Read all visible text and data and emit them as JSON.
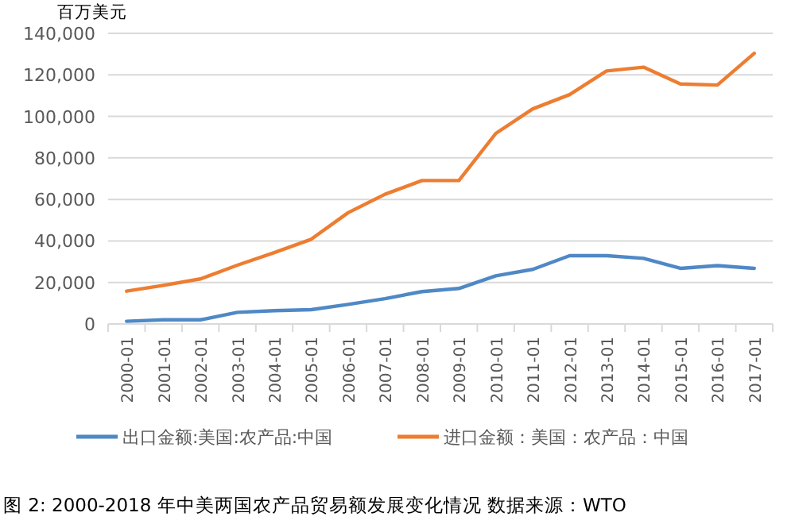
{
  "chart_data": {
    "type": "line",
    "ylabel": "百万美元",
    "categories": [
      "2000-01",
      "2001-01",
      "2002-01",
      "2003-01",
      "2004-01",
      "2005-01",
      "2006-01",
      "2007-01",
      "2008-01",
      "2009-01",
      "2010-01",
      "2011-01",
      "2012-01",
      "2013-01",
      "2014-01",
      "2015-01",
      "2016-01",
      "2017-01"
    ],
    "series": [
      {
        "name": "出口金额:美国:农产品:中国",
        "color": "#4f88c6",
        "values": [
          1300,
          2000,
          2000,
          5600,
          6400,
          6900,
          9400,
          12200,
          15600,
          17100,
          23200,
          26300,
          32900,
          32900,
          31600,
          26800,
          28100,
          26800
        ]
      },
      {
        "name": "进口金额：美国：农产品：中国",
        "color": "#ed7d31",
        "values": [
          15800,
          18600,
          21700,
          28300,
          34400,
          40800,
          53600,
          62500,
          69100,
          69100,
          91800,
          103600,
          110500,
          121900,
          123700,
          115600,
          115100,
          130400
        ]
      }
    ],
    "ylim": [
      0,
      140000
    ],
    "yticks": [
      {
        "value": 0,
        "label": "0"
      },
      {
        "value": 20000,
        "label": "20,000"
      },
      {
        "value": 40000,
        "label": "40,000"
      },
      {
        "value": 60000,
        "label": "60,000"
      },
      {
        "value": 80000,
        "label": "80,000"
      },
      {
        "value": 100000,
        "label": "100,000"
      },
      {
        "value": 120000,
        "label": "120,000"
      },
      {
        "value": 140000,
        "label": "140,000"
      }
    ],
    "grid": "y",
    "legend": "bottom",
    "annotations": [
      "图 2: 2000-2018 年中美两国农产品贸易额发展变化情况 数据来源：WTO"
    ]
  }
}
